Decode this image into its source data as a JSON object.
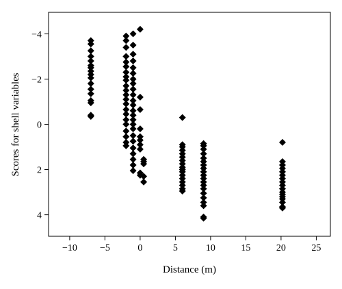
{
  "chart_data": {
    "type": "scatter",
    "title": "",
    "xlabel": "Distance (m)",
    "ylabel": "Scores for shell variables",
    "xlim": [
      -13,
      27
    ],
    "ylim": [
      4.95,
      -4.95
    ],
    "y_inverted": true,
    "grid": false,
    "legend": "none",
    "xticks": [
      -10,
      -5,
      0,
      5,
      10,
      15,
      20,
      25
    ],
    "xtick_labels": [
      "−10",
      "−5",
      "0",
      "5",
      "10",
      "15",
      "20",
      "25"
    ],
    "yticks": [
      -4,
      -2,
      0,
      2,
      4
    ],
    "ytick_labels": [
      "−4",
      "−2",
      "0",
      "2",
      "4"
    ],
    "marker": "diamond",
    "marker_color": "#000000",
    "series": [
      {
        "x": [
          -7,
          -7,
          -7,
          -7,
          -7,
          -7,
          -7,
          -7,
          -7,
          -7,
          -7,
          -7,
          -7,
          -7,
          -7,
          -7,
          -7,
          -2,
          -2,
          -2,
          -2,
          -2,
          -2,
          -2,
          -2,
          -2,
          -2,
          -2,
          -2,
          -2,
          -2,
          -2,
          -2,
          -2,
          -2,
          -2,
          -2,
          -2,
          -2,
          -1,
          -1,
          -1,
          -1,
          -1,
          -1,
          -1,
          -1,
          -1,
          -1,
          -1,
          -1,
          -1,
          -1,
          -1,
          -1,
          -1,
          -1,
          -1,
          -1,
          -1,
          -1,
          -1,
          -1,
          0,
          0,
          0,
          0,
          0,
          0,
          0,
          0,
          0,
          0,
          0.5,
          0.5,
          0.5,
          0.5,
          0.5,
          6,
          6,
          6,
          6,
          6,
          6,
          6,
          6,
          6,
          6,
          6,
          6,
          6,
          6,
          6,
          6,
          6,
          9,
          9,
          9,
          9,
          9,
          9,
          9,
          9,
          9,
          9,
          9,
          9,
          9,
          9,
          9,
          9,
          9,
          9,
          9,
          9,
          20.2,
          20.2,
          20.2,
          20.2,
          20.2,
          20.2,
          20.2,
          20.2,
          20.2,
          20.2,
          20.2,
          20.2,
          20.2,
          20.2,
          20.2,
          20.2,
          20.2
        ],
        "y": [
          -3.7,
          -3.55,
          -3.25,
          -3.0,
          -2.8,
          -2.6,
          -2.5,
          -2.35,
          -2.2,
          -2.05,
          -1.8,
          -1.55,
          -1.35,
          -1.05,
          -0.95,
          -0.4,
          -0.35,
          -3.9,
          -3.7,
          -3.4,
          -3.0,
          -2.75,
          -2.55,
          -2.3,
          -2.1,
          -1.95,
          -1.7,
          -1.5,
          -1.3,
          -1.1,
          -0.9,
          -0.65,
          -0.45,
          -0.2,
          0.0,
          0.3,
          0.55,
          0.8,
          0.95,
          -4.0,
          -3.5,
          -3.1,
          -2.8,
          -2.5,
          -2.25,
          -2.0,
          -1.8,
          -1.55,
          -1.3,
          -1.05,
          -0.85,
          -0.6,
          -0.4,
          -0.2,
          0.0,
          0.2,
          0.5,
          0.75,
          1.05,
          1.3,
          1.55,
          1.8,
          2.05,
          -4.2,
          -1.2,
          -0.65,
          0.2,
          0.55,
          0.7,
          0.9,
          1.1,
          2.15,
          2.25,
          1.55,
          1.65,
          1.75,
          2.3,
          2.55,
          -0.3,
          0.9,
          1.0,
          1.15,
          1.3,
          1.45,
          1.6,
          1.75,
          1.9,
          2.0,
          2.1,
          2.25,
          2.4,
          2.55,
          2.7,
          2.85,
          2.95,
          0.85,
          0.95,
          1.1,
          1.3,
          1.5,
          1.65,
          1.8,
          1.95,
          2.1,
          2.25,
          2.4,
          2.55,
          2.7,
          2.85,
          3.05,
          3.25,
          3.45,
          3.6,
          4.1,
          4.15,
          0.8,
          1.65,
          1.8,
          1.95,
          2.1,
          2.25,
          2.4,
          2.55,
          2.7,
          2.85,
          3.0,
          3.1,
          3.2,
          3.3,
          3.45,
          3.65,
          3.7
        ]
      }
    ]
  }
}
